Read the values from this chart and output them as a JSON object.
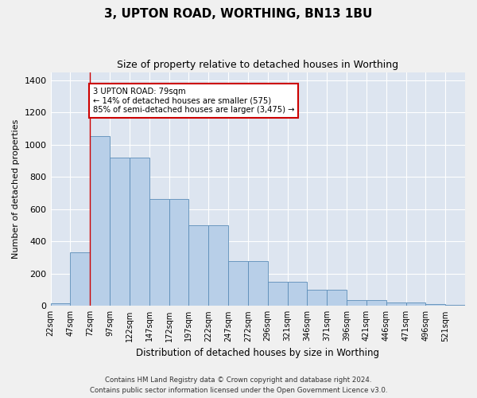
{
  "title": "3, UPTON ROAD, WORTHING, BN13 1BU",
  "subtitle": "Size of property relative to detached houses in Worthing",
  "xlabel": "Distribution of detached houses by size in Worthing",
  "ylabel": "Number of detached properties",
  "footnote1": "Contains HM Land Registry data © Crown copyright and database right 2024.",
  "footnote2": "Contains public sector information licensed under the Open Government Licence v3.0.",
  "bar_labels": [
    "22sqm",
    "47sqm",
    "72sqm",
    "97sqm",
    "122sqm",
    "147sqm",
    "172sqm",
    "197sqm",
    "222sqm",
    "247sqm",
    "272sqm",
    "296sqm",
    "321sqm",
    "346sqm",
    "371sqm",
    "396sqm",
    "421sqm",
    "446sqm",
    "471sqm",
    "496sqm",
    "521sqm"
  ],
  "bar_values": [
    18,
    330,
    1055,
    920,
    920,
    665,
    665,
    500,
    500,
    280,
    280,
    150,
    150,
    100,
    100,
    38,
    38,
    22,
    22,
    12,
    5
  ],
  "bar_color": "#b8cfe8",
  "bar_edge_color": "#5b8db8",
  "background_color": "#dde5f0",
  "grid_color": "#ffffff",
  "annotation_text": "3 UPTON ROAD: 79sqm\n← 14% of detached houses are smaller (575)\n85% of semi-detached houses are larger (3,475) →",
  "annotation_box_color": "#ffffff",
  "annotation_box_edge": "#cc0000",
  "vline_x": 2,
  "vline_color": "#cc0000",
  "ylim": [
    0,
    1450
  ],
  "yticks": [
    0,
    200,
    400,
    600,
    800,
    1000,
    1200,
    1400
  ],
  "fig_bg": "#f0f0f0"
}
